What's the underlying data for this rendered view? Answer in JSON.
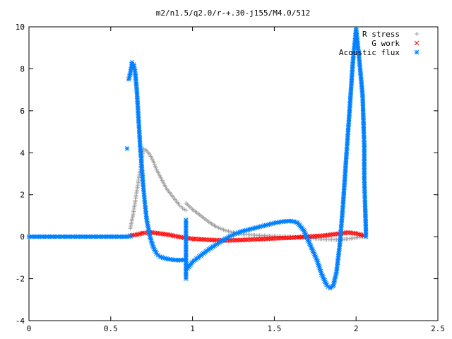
{
  "chart_data": {
    "type": "scatter",
    "title": "m2/n1.5/q2.0/r-+.30-j155/M4.0/512",
    "xlabel": "",
    "ylabel": "",
    "xlim": [
      0,
      2.5
    ],
    "ylim": [
      -4,
      10
    ],
    "x_ticks": [
      "0",
      "0.5",
      "1",
      "1.5",
      "2",
      "2.5"
    ],
    "y_ticks": [
      "-4",
      "-2",
      "0",
      "2",
      "4",
      "6",
      "8",
      "10"
    ],
    "grid": false,
    "legend_position": "top-right",
    "series": [
      {
        "name": "R stress",
        "color": "#a0a0a0",
        "marker": "plus",
        "segments": [
          [
            [
              0.62,
              0.4
            ],
            [
              0.64,
              1.2
            ],
            [
              0.66,
              2.2
            ],
            [
              0.68,
              3.2
            ],
            [
              0.7,
              4.2
            ],
            [
              0.72,
              4.1
            ],
            [
              0.74,
              3.9
            ],
            [
              0.76,
              3.6
            ],
            [
              0.78,
              3.2
            ],
            [
              0.8,
              2.9
            ],
            [
              0.82,
              2.6
            ],
            [
              0.84,
              2.3
            ],
            [
              0.86,
              2.1
            ],
            [
              0.88,
              1.9
            ],
            [
              0.9,
              1.7
            ],
            [
              0.92,
              1.5
            ],
            [
              0.94,
              1.35
            ],
            [
              0.96,
              1.25
            ]
          ],
          [
            [
              0.96,
              1.6
            ],
            [
              1.0,
              1.3
            ],
            [
              1.05,
              1.0
            ],
            [
              1.1,
              0.7
            ],
            [
              1.15,
              0.45
            ],
            [
              1.2,
              0.3
            ],
            [
              1.25,
              0.2
            ],
            [
              1.3,
              0.12
            ],
            [
              1.4,
              0.06
            ],
            [
              1.5,
              0.03
            ],
            [
              1.6,
              0.0
            ],
            [
              1.7,
              -0.05
            ],
            [
              1.8,
              -0.12
            ],
            [
              1.9,
              -0.15
            ],
            [
              1.95,
              -0.1
            ],
            [
              2.0,
              -0.05
            ],
            [
              2.05,
              0.0
            ]
          ]
        ]
      },
      {
        "name": "G work",
        "color": "#ff0000",
        "marker": "cross",
        "segments": [
          [
            [
              0.62,
              0.05
            ],
            [
              0.66,
              0.1
            ],
            [
              0.7,
              0.18
            ],
            [
              0.75,
              0.2
            ],
            [
              0.8,
              0.15
            ],
            [
              0.85,
              0.1
            ],
            [
              0.9,
              0.02
            ],
            [
              0.95,
              -0.05
            ],
            [
              1.0,
              -0.1
            ],
            [
              1.1,
              -0.15
            ],
            [
              1.2,
              -0.18
            ],
            [
              1.3,
              -0.16
            ],
            [
              1.4,
              -0.12
            ],
            [
              1.5,
              -0.08
            ],
            [
              1.6,
              -0.05
            ],
            [
              1.7,
              0.0
            ],
            [
              1.8,
              0.05
            ],
            [
              1.9,
              0.15
            ],
            [
              1.95,
              0.2
            ],
            [
              2.0,
              0.15
            ],
            [
              2.05,
              0.05
            ]
          ]
        ]
      },
      {
        "name": "Acoustic flux",
        "color": "#0080ff",
        "marker": "star",
        "segments": [
          [
            [
              0.0,
              0.0
            ],
            [
              0.1,
              0.0
            ],
            [
              0.2,
              0.0
            ],
            [
              0.3,
              0.0
            ],
            [
              0.4,
              0.0
            ],
            [
              0.5,
              0.0
            ],
            [
              0.6,
              0.0
            ],
            [
              0.62,
              0.02
            ]
          ],
          [
            [
              0.6,
              4.2
            ]
          ],
          [
            [
              0.61,
              7.5
            ],
            [
              0.62,
              7.8
            ],
            [
              0.63,
              8.3
            ],
            [
              0.64,
              8.2
            ],
            [
              0.65,
              7.8
            ],
            [
              0.66,
              6.9
            ],
            [
              0.67,
              5.6
            ],
            [
              0.68,
              4.3
            ],
            [
              0.69,
              3.3
            ],
            [
              0.7,
              2.3
            ],
            [
              0.71,
              1.5
            ],
            [
              0.72,
              0.8
            ],
            [
              0.74,
              0.0
            ],
            [
              0.76,
              -0.5
            ],
            [
              0.78,
              -0.8
            ],
            [
              0.8,
              -0.95
            ],
            [
              0.84,
              -1.05
            ],
            [
              0.88,
              -1.1
            ],
            [
              0.92,
              -1.12
            ],
            [
              0.95,
              -1.1
            ]
          ],
          [
            [
              0.96,
              0.8
            ],
            [
              0.96,
              -0.8
            ],
            [
              0.96,
              -2.0
            ]
          ],
          [
            [
              0.97,
              -1.5
            ],
            [
              1.0,
              -1.2
            ],
            [
              1.05,
              -0.9
            ],
            [
              1.1,
              -0.6
            ],
            [
              1.15,
              -0.35
            ],
            [
              1.2,
              -0.1
            ],
            [
              1.25,
              0.1
            ],
            [
              1.3,
              0.25
            ],
            [
              1.35,
              0.35
            ],
            [
              1.4,
              0.45
            ],
            [
              1.45,
              0.55
            ],
            [
              1.5,
              0.65
            ],
            [
              1.55,
              0.72
            ],
            [
              1.6,
              0.75
            ],
            [
              1.64,
              0.68
            ],
            [
              1.68,
              0.3
            ],
            [
              1.72,
              -0.4
            ],
            [
              1.76,
              -1.1
            ],
            [
              1.79,
              -1.8
            ],
            [
              1.82,
              -2.3
            ],
            [
              1.84,
              -2.45
            ],
            [
              1.86,
              -2.35
            ],
            [
              1.88,
              -1.7
            ],
            [
              1.9,
              -0.4
            ],
            [
              1.92,
              1.5
            ],
            [
              1.94,
              3.8
            ],
            [
              1.96,
              6.0
            ],
            [
              1.98,
              8.3
            ],
            [
              2.0,
              9.9
            ],
            [
              2.02,
              8.4
            ],
            [
              2.04,
              6.7
            ],
            [
              2.05,
              4.3
            ],
            [
              2.05,
              2.8
            ],
            [
              2.06,
              0.3
            ],
            [
              2.06,
              0.0
            ]
          ]
        ]
      }
    ]
  }
}
